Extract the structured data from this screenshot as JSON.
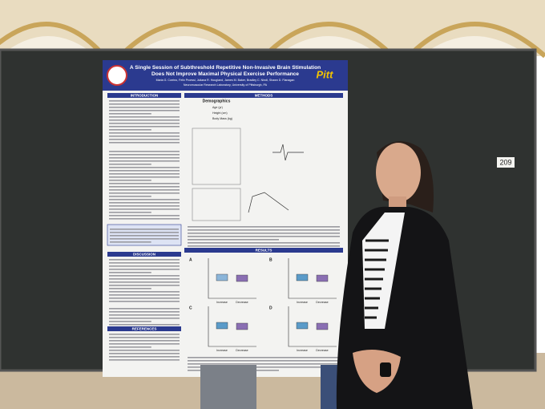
{
  "photo": {
    "board_number": "209",
    "poster": {
      "title_line_1": "A Single Session of Subthreshold Repetitive Non-Invasive Brain Stimulation",
      "title_line_2": "Does Not Improve Maximal Physical Exercise Performance",
      "authors": "Maria G. Corrino, Felix Proessl, Juliana R. Hougland, James M. Baker, Bradley C. Nindl, Shawn D. Flanagan",
      "affiliation": "Neuromuscular Research Laboratory, University of Pittsburgh, PA",
      "logo": "Pitt",
      "sections": {
        "introduction": "INTRODUCTION",
        "methods": "METHODS",
        "results": "RESULTS",
        "discussion": "DISCUSSION",
        "references": "REFERENCES"
      },
      "demographics": {
        "title": "Demographics",
        "rows": [
          "Age (yr)",
          "Height (cm)",
          "Body Mass (kg)"
        ]
      },
      "panels": [
        "A",
        "B",
        "C",
        "D"
      ],
      "x_labels": [
        "Increase",
        "Decrease"
      ]
    }
  }
}
